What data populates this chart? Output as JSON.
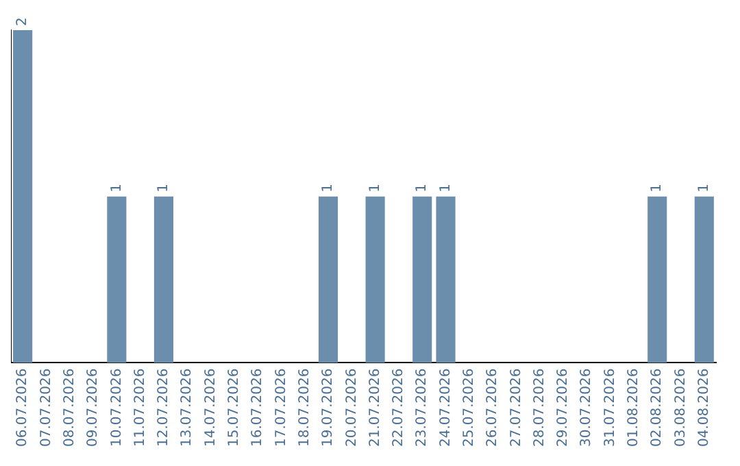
{
  "chart_data": {
    "type": "bar",
    "categories": [
      "06.07.2026",
      "07.07.2026",
      "08.07.2026",
      "09.07.2026",
      "10.07.2026",
      "11.07.2026",
      "12.07.2026",
      "13.07.2026",
      "14.07.2026",
      "15.07.2026",
      "16.07.2026",
      "17.07.2026",
      "18.07.2026",
      "19.07.2026",
      "20.07.2026",
      "21.07.2026",
      "22.07.2026",
      "23.07.2026",
      "24.07.2026",
      "25.07.2026",
      "26.07.2026",
      "27.07.2026",
      "28.07.2026",
      "29.07.2026",
      "30.07.2026",
      "31.07.2026",
      "01.08.2026",
      "02.08.2026",
      "03.08.2026",
      "04.08.2026"
    ],
    "values": [
      2,
      0,
      0,
      0,
      1,
      0,
      1,
      0,
      0,
      0,
      0,
      0,
      0,
      1,
      0,
      1,
      0,
      1,
      1,
      0,
      0,
      0,
      0,
      0,
      0,
      0,
      0,
      1,
      0,
      1
    ],
    "value_labels": [
      "2",
      null,
      null,
      null,
      "1",
      null,
      "1",
      null,
      null,
      null,
      null,
      null,
      null,
      "1",
      null,
      "1",
      null,
      "1",
      "1",
      null,
      null,
      null,
      null,
      null,
      null,
      null,
      null,
      "1",
      null,
      "1"
    ],
    "color": "#6c8ead",
    "ylim": [
      0,
      2
    ],
    "tick_labels": "x",
    "grid": false,
    "legend": false
  }
}
